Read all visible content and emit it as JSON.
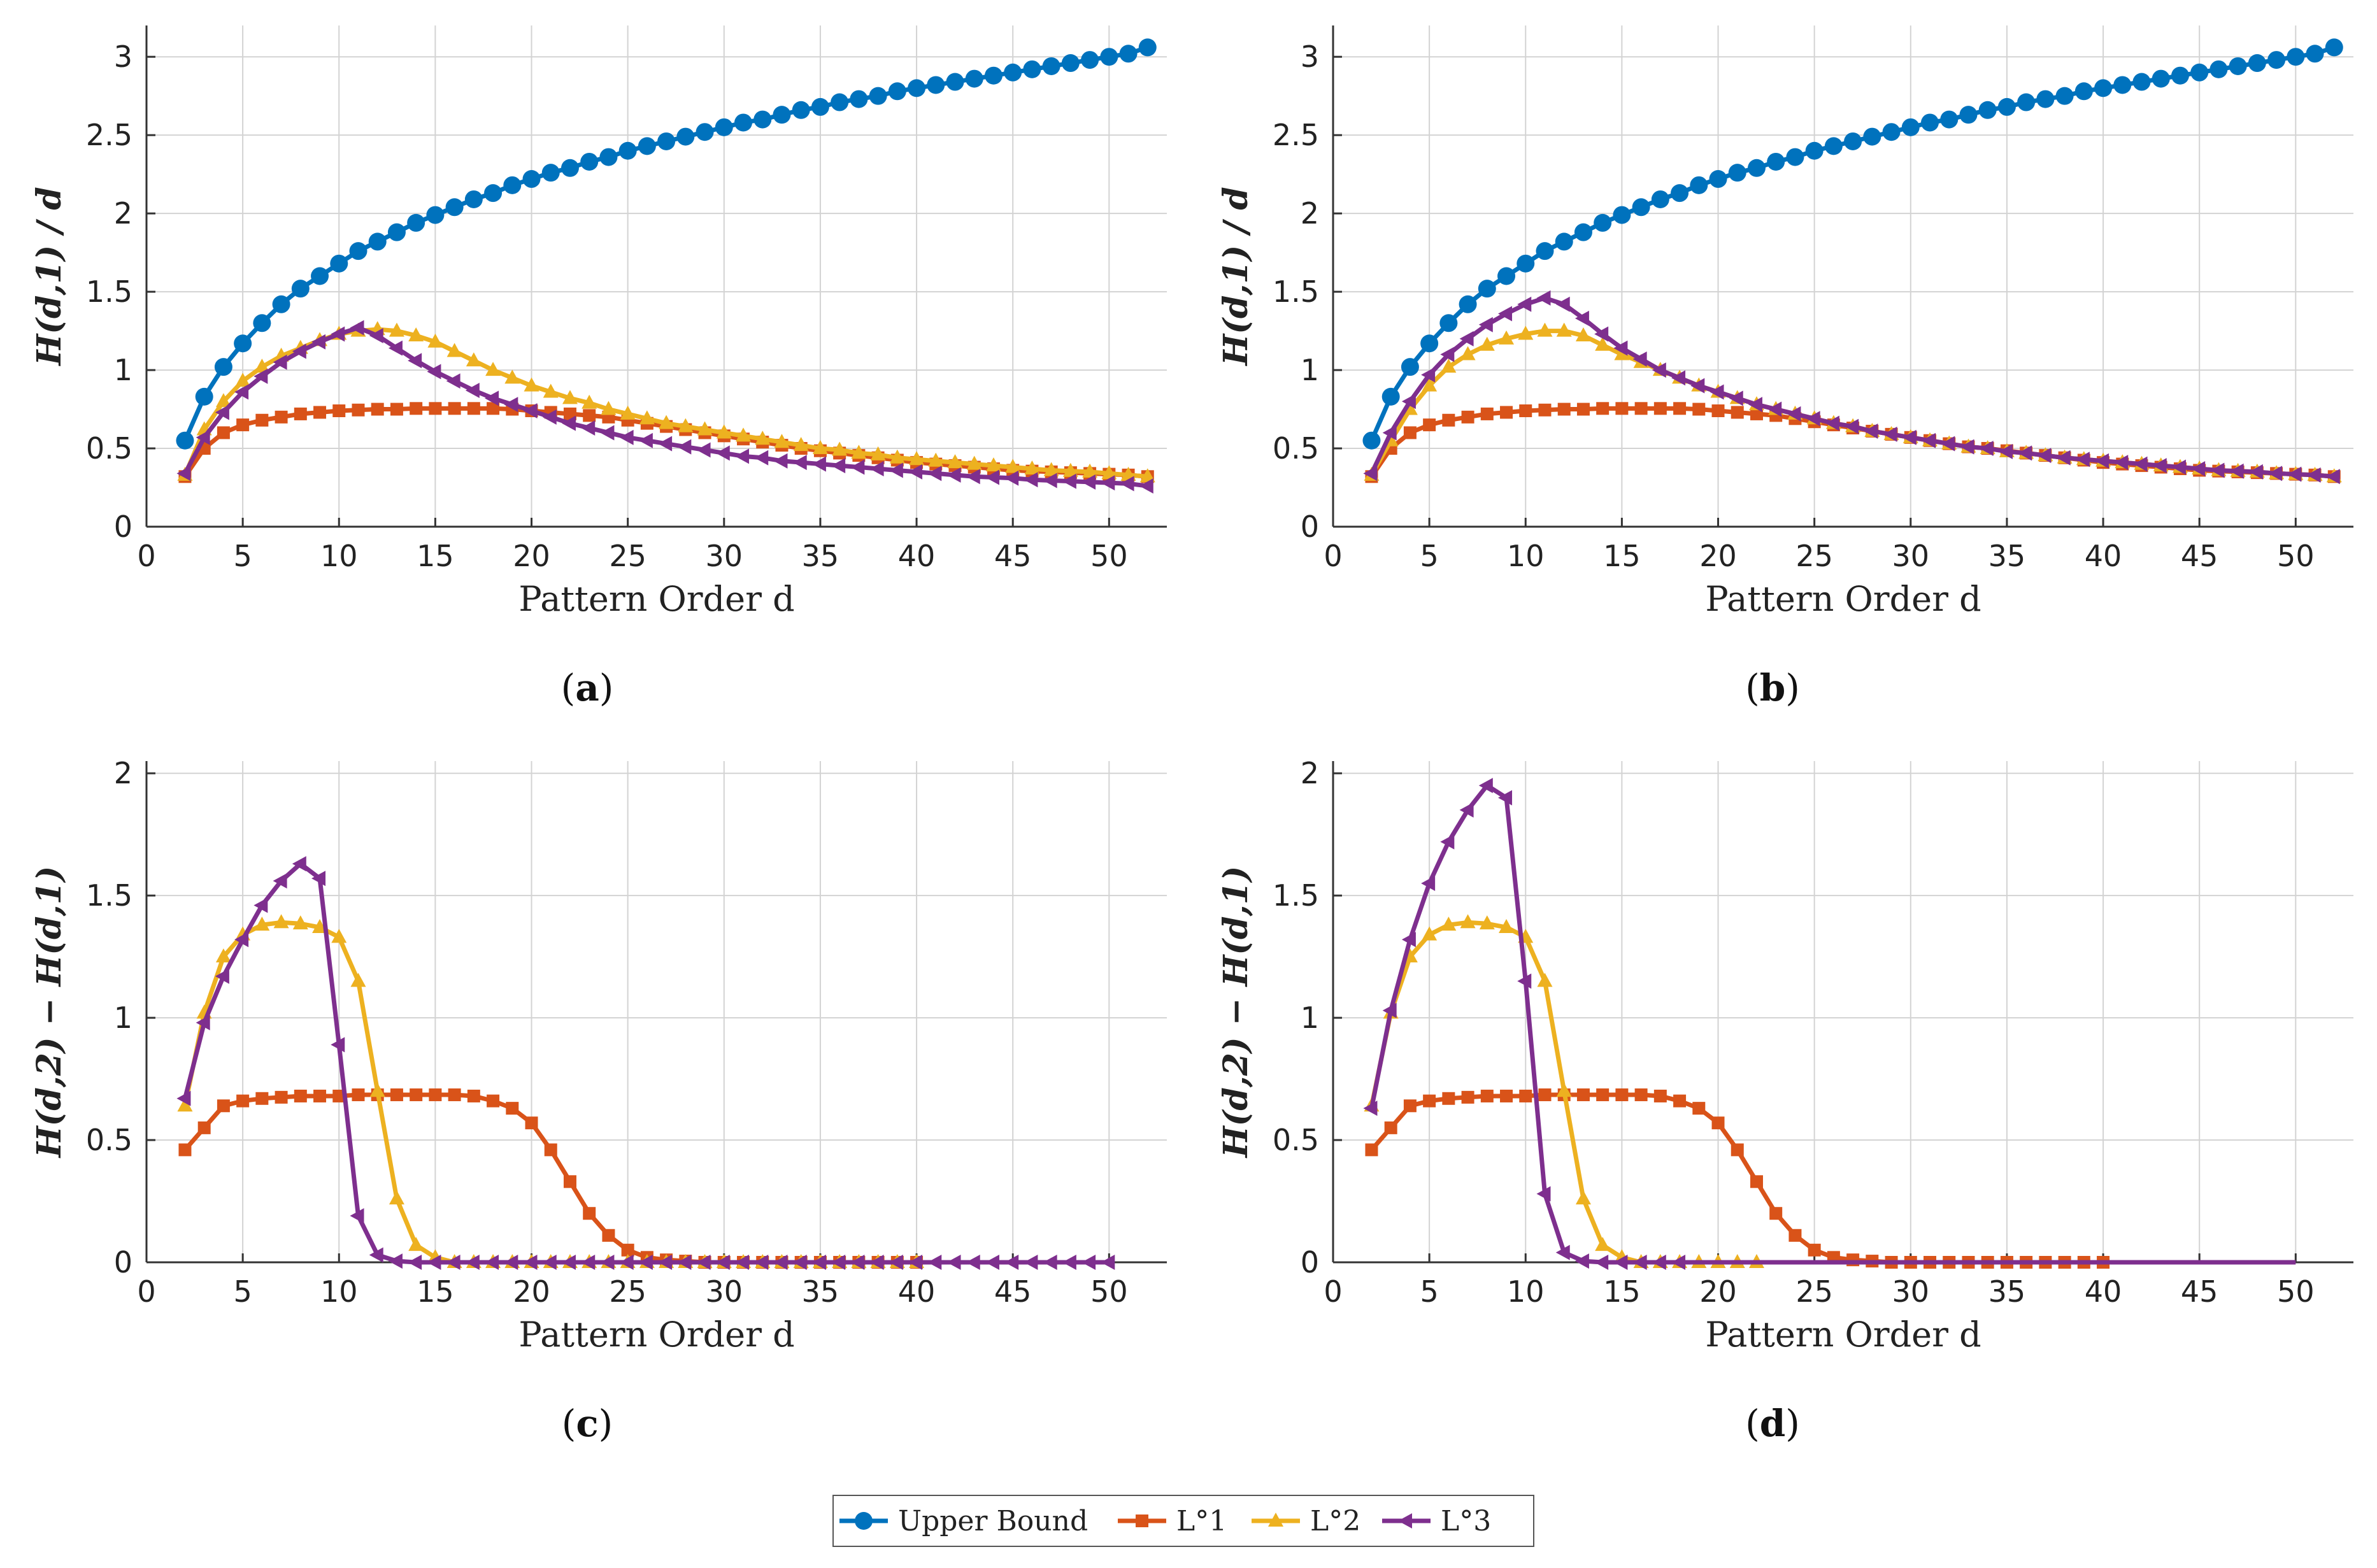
{
  "legend": {
    "items": [
      {
        "label": "Upper Bound",
        "color": "#0072BD",
        "marker": "circle"
      },
      {
        "label": "L°1",
        "color": "#D95319",
        "marker": "square"
      },
      {
        "label": "L°2",
        "color": "#EDB120",
        "marker": "triangle-up"
      },
      {
        "label": "L°3",
        "color": "#7E2F8E",
        "marker": "triangle-left"
      }
    ]
  },
  "chart_data": [
    {
      "panel": "a",
      "caption_letter": "a",
      "type": "line",
      "xlabel": "Pattern Order d",
      "ylabel": "H(d,1) / d",
      "xlim": [
        0,
        53
      ],
      "ylim": [
        0,
        3.2
      ],
      "xticks": [
        0,
        5,
        10,
        15,
        20,
        25,
        30,
        35,
        40,
        45,
        50
      ],
      "yticks": [
        0,
        0.5,
        1,
        1.5,
        2,
        2.5,
        3
      ],
      "ytick_labels": [
        "0",
        "0.5",
        "1",
        "1.5",
        "2",
        "2.5",
        "3"
      ],
      "grid": true,
      "series": [
        {
          "name": "Upper Bound",
          "color": "#0072BD",
          "marker": "circle",
          "x_start": 2,
          "values": [
            0.55,
            0.83,
            1.02,
            1.17,
            1.3,
            1.42,
            1.52,
            1.6,
            1.68,
            1.76,
            1.82,
            1.88,
            1.94,
            1.99,
            2.04,
            2.09,
            2.13,
            2.18,
            2.22,
            2.26,
            2.29,
            2.33,
            2.36,
            2.4,
            2.43,
            2.46,
            2.49,
            2.52,
            2.55,
            2.58,
            2.6,
            2.63,
            2.66,
            2.68,
            2.71,
            2.73,
            2.75,
            2.78,
            2.8,
            2.82,
            2.84,
            2.86,
            2.88,
            2.9,
            2.92,
            2.94,
            2.96,
            2.98,
            3.0,
            3.02,
            3.06
          ]
        },
        {
          "name": "L°1",
          "color": "#D95319",
          "marker": "square",
          "x_start": 2,
          "values": [
            0.32,
            0.5,
            0.6,
            0.65,
            0.68,
            0.7,
            0.72,
            0.73,
            0.74,
            0.745,
            0.75,
            0.75,
            0.755,
            0.755,
            0.755,
            0.755,
            0.755,
            0.75,
            0.74,
            0.73,
            0.72,
            0.71,
            0.7,
            0.68,
            0.66,
            0.64,
            0.62,
            0.6,
            0.58,
            0.56,
            0.54,
            0.52,
            0.5,
            0.485,
            0.47,
            0.455,
            0.44,
            0.425,
            0.41,
            0.4,
            0.39,
            0.38,
            0.37,
            0.36,
            0.355,
            0.35,
            0.345,
            0.34,
            0.335,
            0.33,
            0.32
          ]
        },
        {
          "name": "L°2",
          "color": "#EDB120",
          "marker": "triangle-up",
          "x_start": 2,
          "values": [
            0.33,
            0.62,
            0.8,
            0.93,
            1.02,
            1.09,
            1.14,
            1.19,
            1.23,
            1.25,
            1.26,
            1.25,
            1.22,
            1.18,
            1.12,
            1.06,
            1.0,
            0.95,
            0.9,
            0.86,
            0.82,
            0.79,
            0.75,
            0.72,
            0.69,
            0.66,
            0.64,
            0.62,
            0.6,
            0.58,
            0.56,
            0.54,
            0.52,
            0.5,
            0.49,
            0.47,
            0.46,
            0.44,
            0.43,
            0.42,
            0.41,
            0.4,
            0.39,
            0.38,
            0.37,
            0.36,
            0.355,
            0.35,
            0.34,
            0.33,
            0.32
          ]
        },
        {
          "name": "L°3",
          "color": "#7E2F8E",
          "marker": "triangle-left",
          "x_start": 2,
          "values": [
            0.34,
            0.57,
            0.73,
            0.86,
            0.96,
            1.05,
            1.12,
            1.18,
            1.23,
            1.27,
            1.22,
            1.14,
            1.06,
            0.99,
            0.93,
            0.87,
            0.82,
            0.78,
            0.74,
            0.7,
            0.66,
            0.63,
            0.6,
            0.57,
            0.55,
            0.53,
            0.51,
            0.49,
            0.47,
            0.45,
            0.44,
            0.42,
            0.41,
            0.4,
            0.39,
            0.38,
            0.37,
            0.36,
            0.35,
            0.34,
            0.33,
            0.32,
            0.315,
            0.31,
            0.3,
            0.295,
            0.29,
            0.285,
            0.28,
            0.275,
            0.26
          ]
        }
      ]
    },
    {
      "panel": "b",
      "caption_letter": "b",
      "type": "line",
      "xlabel": "Pattern Order d",
      "ylabel": "H(d,1) / d",
      "xlim": [
        0,
        53
      ],
      "ylim": [
        0,
        3.2
      ],
      "xticks": [
        0,
        5,
        10,
        15,
        20,
        25,
        30,
        35,
        40,
        45,
        50
      ],
      "yticks": [
        0,
        0.5,
        1,
        1.5,
        2,
        2.5,
        3
      ],
      "ytick_labels": [
        "0",
        "0.5",
        "1",
        "1.5",
        "2",
        "2.5",
        "3"
      ],
      "grid": true,
      "series": [
        {
          "name": "Upper Bound",
          "color": "#0072BD",
          "marker": "circle",
          "x_start": 2,
          "values": [
            0.55,
            0.83,
            1.02,
            1.17,
            1.3,
            1.42,
            1.52,
            1.6,
            1.68,
            1.76,
            1.82,
            1.88,
            1.94,
            1.99,
            2.04,
            2.09,
            2.13,
            2.18,
            2.22,
            2.26,
            2.29,
            2.33,
            2.36,
            2.4,
            2.43,
            2.46,
            2.49,
            2.52,
            2.55,
            2.58,
            2.6,
            2.63,
            2.66,
            2.68,
            2.71,
            2.73,
            2.75,
            2.78,
            2.8,
            2.82,
            2.84,
            2.86,
            2.88,
            2.9,
            2.92,
            2.94,
            2.96,
            2.98,
            3.0,
            3.02,
            3.06
          ]
        },
        {
          "name": "L°1",
          "color": "#D95319",
          "marker": "square",
          "x_start": 2,
          "values": [
            0.32,
            0.5,
            0.6,
            0.65,
            0.68,
            0.7,
            0.72,
            0.73,
            0.74,
            0.745,
            0.75,
            0.75,
            0.755,
            0.755,
            0.755,
            0.755,
            0.755,
            0.75,
            0.74,
            0.73,
            0.72,
            0.71,
            0.69,
            0.67,
            0.65,
            0.63,
            0.61,
            0.59,
            0.57,
            0.55,
            0.53,
            0.51,
            0.5,
            0.485,
            0.47,
            0.455,
            0.44,
            0.425,
            0.41,
            0.4,
            0.39,
            0.38,
            0.37,
            0.36,
            0.355,
            0.35,
            0.345,
            0.34,
            0.335,
            0.33,
            0.32
          ]
        },
        {
          "name": "L°2",
          "color": "#EDB120",
          "marker": "triangle-up",
          "x_start": 2,
          "values": [
            0.33,
            0.55,
            0.75,
            0.9,
            1.02,
            1.1,
            1.16,
            1.2,
            1.23,
            1.25,
            1.25,
            1.22,
            1.16,
            1.1,
            1.05,
            1.0,
            0.95,
            0.9,
            0.86,
            0.82,
            0.78,
            0.75,
            0.72,
            0.69,
            0.66,
            0.64,
            0.61,
            0.59,
            0.57,
            0.55,
            0.53,
            0.51,
            0.5,
            0.48,
            0.47,
            0.455,
            0.44,
            0.43,
            0.42,
            0.41,
            0.4,
            0.39,
            0.38,
            0.37,
            0.36,
            0.355,
            0.35,
            0.34,
            0.335,
            0.33,
            0.32
          ]
        },
        {
          "name": "L°3",
          "color": "#7E2F8E",
          "marker": "triangle-left",
          "x_start": 2,
          "values": [
            0.34,
            0.6,
            0.8,
            0.97,
            1.1,
            1.2,
            1.29,
            1.36,
            1.42,
            1.46,
            1.42,
            1.33,
            1.23,
            1.14,
            1.07,
            1.0,
            0.95,
            0.9,
            0.86,
            0.82,
            0.78,
            0.75,
            0.72,
            0.69,
            0.66,
            0.64,
            0.61,
            0.59,
            0.57,
            0.55,
            0.53,
            0.51,
            0.5,
            0.48,
            0.47,
            0.455,
            0.44,
            0.43,
            0.42,
            0.41,
            0.4,
            0.39,
            0.38,
            0.37,
            0.36,
            0.355,
            0.35,
            0.34,
            0.335,
            0.33,
            0.32
          ]
        }
      ]
    },
    {
      "panel": "c",
      "caption_letter": "c",
      "type": "line",
      "xlabel": "Pattern Order d",
      "ylabel": "H(d,2) − H(d,1)",
      "xlim": [
        0,
        53
      ],
      "ylim": [
        0,
        2.05
      ],
      "xticks": [
        0,
        5,
        10,
        15,
        20,
        25,
        30,
        35,
        40,
        45,
        50
      ],
      "yticks": [
        0,
        0.5,
        1,
        1.5,
        2
      ],
      "ytick_labels": [
        "0",
        "0.5",
        "1",
        "1.5",
        "2"
      ],
      "grid": true,
      "series": [
        {
          "name": "L°1",
          "color": "#D95319",
          "marker": "square",
          "x_start": 2,
          "values": [
            0.46,
            0.55,
            0.64,
            0.66,
            0.67,
            0.675,
            0.68,
            0.68,
            0.68,
            0.685,
            0.685,
            0.685,
            0.685,
            0.685,
            0.685,
            0.68,
            0.66,
            0.63,
            0.57,
            0.46,
            0.33,
            0.2,
            0.11,
            0.05,
            0.02,
            0.01,
            0.005,
            0,
            0,
            0,
            0,
            0,
            0,
            0,
            0,
            0,
            0,
            0,
            0
          ]
        },
        {
          "name": "L°2",
          "color": "#EDB120",
          "marker": "triangle-up",
          "x_start": 2,
          "values": [
            0.64,
            1.02,
            1.25,
            1.34,
            1.38,
            1.39,
            1.385,
            1.37,
            1.33,
            1.15,
            0.7,
            0.26,
            0.07,
            0.02,
            0,
            0,
            0,
            0,
            0,
            0,
            0,
            0,
            0,
            0,
            0,
            0,
            0,
            0,
            0,
            0,
            0,
            0,
            0,
            0,
            0,
            0,
            0,
            0,
            0
          ]
        },
        {
          "name": "L°3",
          "color": "#7E2F8E",
          "marker": "triangle-left",
          "x_start": 2,
          "values": [
            0.67,
            0.98,
            1.17,
            1.32,
            1.46,
            1.56,
            1.63,
            1.57,
            0.89,
            0.19,
            0.03,
            0.005,
            0,
            0,
            0,
            0,
            0,
            0,
            0,
            0,
            0,
            0,
            0,
            0,
            0,
            0,
            0,
            0,
            0,
            0,
            0,
            0,
            0,
            0,
            0,
            0,
            0,
            0,
            0,
            0,
            0,
            0,
            0,
            0,
            0,
            0,
            0,
            0,
            0
          ]
        }
      ]
    },
    {
      "panel": "d",
      "caption_letter": "d",
      "type": "line",
      "xlabel": "Pattern Order d",
      "ylabel": "H(d,2) − H(d,1)",
      "xlim": [
        0,
        53
      ],
      "ylim": [
        0,
        2.05
      ],
      "xticks": [
        0,
        5,
        10,
        15,
        20,
        25,
        30,
        35,
        40,
        45,
        50
      ],
      "yticks": [
        0,
        0.5,
        1,
        1.5,
        2
      ],
      "ytick_labels": [
        "0",
        "0.5",
        "1",
        "1.5",
        "2"
      ],
      "grid": true,
      "series": [
        {
          "name": "L°1",
          "color": "#D95319",
          "marker": "square",
          "x_start": 2,
          "values": [
            0.46,
            0.55,
            0.64,
            0.66,
            0.67,
            0.675,
            0.68,
            0.68,
            0.68,
            0.685,
            0.685,
            0.685,
            0.685,
            0.685,
            0.685,
            0.68,
            0.66,
            0.63,
            0.57,
            0.46,
            0.33,
            0.2,
            0.11,
            0.05,
            0.02,
            0.01,
            0.005,
            0,
            0,
            0,
            0,
            0,
            0,
            0,
            0,
            0,
            0,
            0,
            0
          ]
        },
        {
          "name": "L°2",
          "color": "#EDB120",
          "marker": "triangle-up",
          "x_start": 2,
          "values": [
            0.64,
            1.02,
            1.25,
            1.34,
            1.38,
            1.39,
            1.385,
            1.37,
            1.33,
            1.15,
            0.7,
            0.26,
            0.07,
            0.02,
            0,
            0,
            0,
            0,
            0,
            0,
            0
          ]
        },
        {
          "name": "L°3",
          "color": "#7E2F8E",
          "marker": "triangle-left",
          "x_start": 2,
          "values": [
            0.63,
            1.03,
            1.32,
            1.55,
            1.72,
            1.85,
            1.95,
            1.9,
            1.15,
            0.28,
            0.04,
            0.005,
            0,
            0,
            0,
            0,
            0,
            0,
            0,
            0,
            0,
            0,
            0,
            0,
            0,
            0,
            0,
            0,
            0,
            0,
            0,
            0,
            0,
            0,
            0,
            0,
            0,
            0,
            0,
            0,
            0,
            0,
            0,
            0,
            0,
            0,
            0,
            0,
            0
          ],
          "markers_until": 17
        }
      ]
    }
  ]
}
